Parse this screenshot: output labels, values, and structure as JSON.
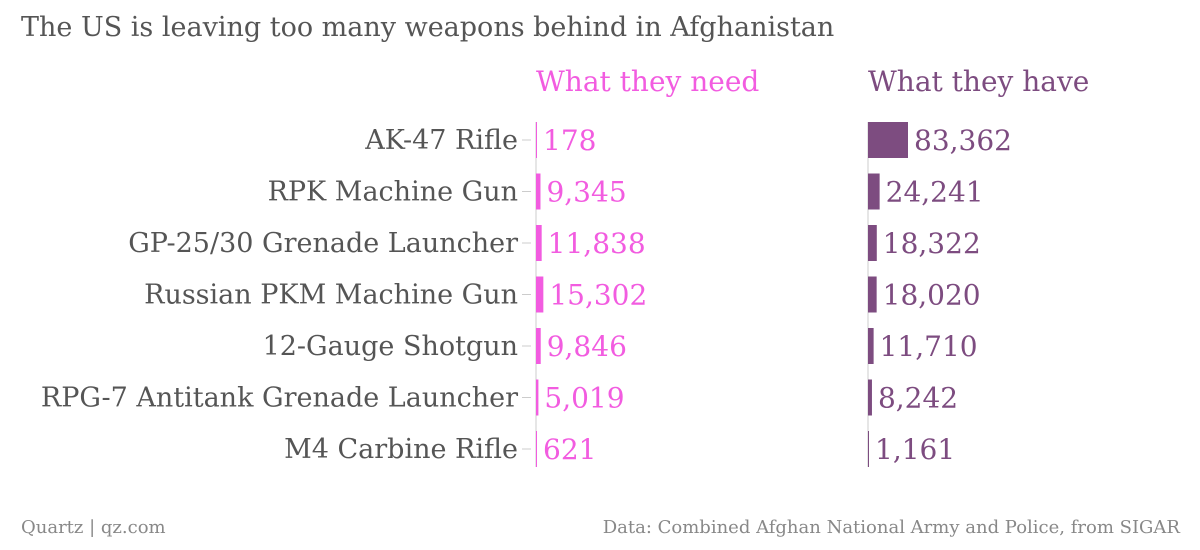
{
  "chart_data": {
    "type": "bar",
    "title": "The US is leaving too many weapons behind in Afghanistan",
    "categories": [
      "AK-47 Rifle",
      "RPK Machine Gun",
      "GP-25/30 Grenade Launcher",
      "Russian PKM Machine Gun",
      "12-Gauge Shotgun",
      "RPG-7 Antitank Grenade Launcher",
      "M4 Carbine Rifle"
    ],
    "series": [
      {
        "name": "What they need",
        "color": "#f25ce0",
        "values": [
          178,
          9345,
          11838,
          15302,
          9846,
          5019,
          621
        ],
        "labels": [
          "178",
          "9,345",
          "11,838",
          "15,302",
          "9,846",
          "5,019",
          "621"
        ]
      },
      {
        "name": "What they have",
        "color": "#7d4c80",
        "values": [
          83362,
          24241,
          18322,
          18020,
          11710,
          8242,
          1161
        ],
        "labels": [
          "83,362",
          "24,241",
          "18,322",
          "18,020",
          "11,710",
          "8,242",
          "1,161"
        ]
      }
    ],
    "xlim": [
      0,
      83362
    ],
    "grid": false,
    "legend": "top"
  },
  "footer": {
    "left": "Quartz | qz.com",
    "right": "Data: Combined Afghan National Army and Police, from SIGAR"
  },
  "colors": {
    "text": "#555555",
    "axis": "#cccccc",
    "footer": "#888888"
  }
}
